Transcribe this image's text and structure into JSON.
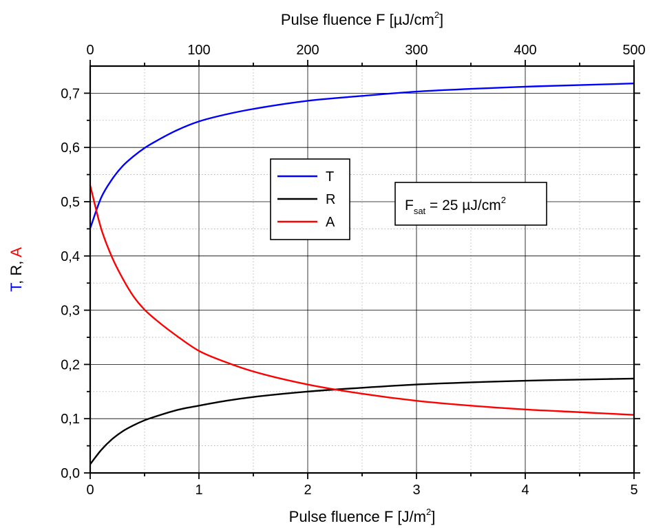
{
  "chart_data": {
    "type": "line",
    "x_bottom": {
      "label": "Pulse fluence F [J/m",
      "label_sup": "2",
      "label_end": "]",
      "range": [
        0,
        5
      ],
      "ticks": [
        0,
        1,
        2,
        3,
        4,
        5
      ],
      "tick_labels": [
        "0",
        "1",
        "2",
        "3",
        "4",
        "5"
      ]
    },
    "x_top": {
      "label": "Pulse fluence F [µJ/cm",
      "label_sup": "2",
      "label_end": "]",
      "range": [
        0,
        500
      ],
      "ticks": [
        0,
        100,
        200,
        300,
        400,
        500
      ],
      "tick_labels": [
        "0",
        "100",
        "200",
        "300",
        "400",
        "500"
      ]
    },
    "y": {
      "label_parts": [
        {
          "text": "T",
          "color": "#0000ff"
        },
        {
          "text": ", R, ",
          "color": "#000000"
        },
        {
          "text": "A",
          "color": "#ff0000"
        }
      ],
      "range": [
        0,
        0.75
      ],
      "ticks": [
        0,
        0.1,
        0.2,
        0.3,
        0.4,
        0.5,
        0.6,
        0.7
      ],
      "tick_labels": [
        "0,0",
        "0,1",
        "0,2",
        "0,3",
        "0,4",
        "0,5",
        "0,6",
        "0,7"
      ]
    },
    "grid": true,
    "x": [
      0,
      0.1,
      0.2,
      0.3,
      0.4,
      0.5,
      0.6,
      0.8,
      1.0,
      1.25,
      1.5,
      2.0,
      2.5,
      3.0,
      3.5,
      4.0,
      4.5,
      5.0
    ],
    "series": [
      {
        "name": "T",
        "color": "#0000ff",
        "values": [
          0.451,
          0.507,
          0.541,
          0.566,
          0.584,
          0.599,
          0.611,
          0.632,
          0.648,
          0.661,
          0.671,
          0.686,
          0.695,
          0.703,
          0.708,
          0.712,
          0.715,
          0.718
        ]
      },
      {
        "name": "R",
        "color": "#000000",
        "values": [
          0.016,
          0.042,
          0.062,
          0.077,
          0.088,
          0.097,
          0.104,
          0.116,
          0.124,
          0.133,
          0.14,
          0.15,
          0.157,
          0.163,
          0.167,
          0.17,
          0.172,
          0.174
        ]
      },
      {
        "name": "A",
        "color": "#ff0000",
        "values": [
          0.53,
          0.451,
          0.398,
          0.358,
          0.325,
          0.301,
          0.283,
          0.252,
          0.225,
          0.204,
          0.187,
          0.163,
          0.146,
          0.133,
          0.124,
          0.117,
          0.112,
          0.107
        ]
      }
    ],
    "legend": {
      "placement": "center-left",
      "entries": [
        {
          "label": "T",
          "color": "#0000ff"
        },
        {
          "label": "R",
          "color": "#000000"
        },
        {
          "label": "A",
          "color": "#ff0000"
        }
      ]
    },
    "annotation": {
      "main": "F",
      "sub": "sat",
      "rest": " = 25 µJ/cm",
      "sup": "2"
    }
  }
}
